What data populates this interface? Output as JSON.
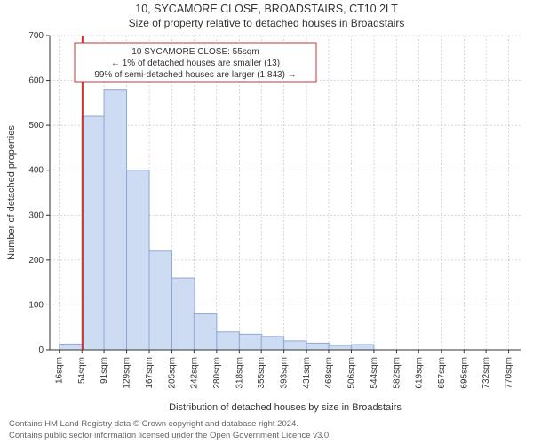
{
  "title_line1": "10, SYCAMORE CLOSE, BROADSTAIRS, CT10 2LT",
  "title_line2": "Size of property relative to detached houses in Broadstairs",
  "xlabel": "Distribution of detached houses by size in Broadstairs",
  "ylabel": "Number of detached properties",
  "annot_line1": "10 SYCAMORE CLOSE: 55sqm",
  "annot_line2": "← 1% of detached houses are smaller (13)",
  "annot_line3": "99% of semi-detached houses are larger (1,843) →",
  "footer_line1": "Contains HM Land Registry data © Crown copyright and database right 2024.",
  "footer_line2": "Contains public sector information licensed under the Open Government Licence v3.0.",
  "chart": {
    "type": "bar-histogram-with-marker",
    "background_color": "#ffffff",
    "grid_color": "#b0b0b0",
    "axis_color": "#333333",
    "bar_fill": "#cddcf2",
    "bar_stroke": "#8fa8d6",
    "bar_stroke_width": 1,
    "marker_color": "#cc3333",
    "marker_x": 55,
    "annot_box_stroke": "#cc3333",
    "annot_box_fill": "#ffffff",
    "label_fontsize": 11,
    "tick_fontsize": 10,
    "title_fontsize": 12,
    "x_categories": [
      "16sqm",
      "54sqm",
      "91sqm",
      "129sqm",
      "167sqm",
      "205sqm",
      "242sqm",
      "280sqm",
      "318sqm",
      "355sqm",
      "393sqm",
      "431sqm",
      "468sqm",
      "506sqm",
      "544sqm",
      "582sqm",
      "619sqm",
      "657sqm",
      "695sqm",
      "732sqm",
      "770sqm"
    ],
    "x_values": [
      16,
      54,
      91,
      129,
      167,
      205,
      242,
      280,
      318,
      355,
      393,
      431,
      468,
      506,
      544,
      582,
      619,
      657,
      695,
      732,
      770
    ],
    "bar_width_data": 38,
    "values": [
      13,
      520,
      580,
      400,
      220,
      160,
      80,
      40,
      35,
      30,
      20,
      15,
      10,
      12,
      0,
      0,
      0,
      0,
      0,
      0,
      0
    ],
    "xlim": [
      0,
      790
    ],
    "ylim": [
      0,
      700
    ],
    "ytick_step": 100
  }
}
